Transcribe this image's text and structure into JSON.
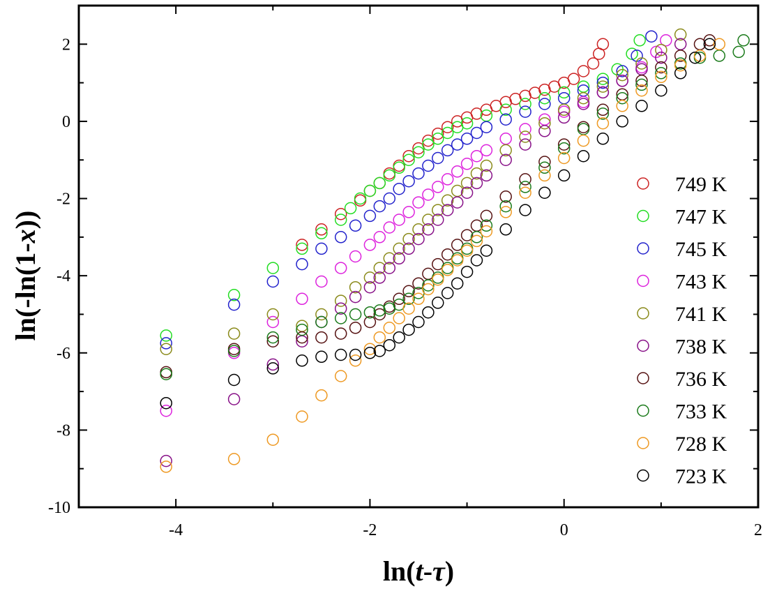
{
  "chart_data": {
    "type": "scatter",
    "xlabel": "ln(t-τ)",
    "ylabel": "ln(-ln(1-x))",
    "xlim": [
      -5,
      2
    ],
    "ylim": [
      -10,
      3
    ],
    "xticks": [
      -4,
      -2,
      0,
      2
    ],
    "yticks": [
      -10,
      -8,
      -6,
      -4,
      -2,
      0,
      2
    ],
    "grid": false,
    "legend_position": "right",
    "series": [
      {
        "name": "749 K",
        "color": "#cc2222",
        "points": [
          [
            -2.7,
            -3.2
          ],
          [
            -2.5,
            -2.8
          ],
          [
            -2.3,
            -2.4
          ],
          [
            -2.1,
            -2.05
          ],
          [
            -2.0,
            -1.8
          ],
          [
            -1.9,
            -1.6
          ],
          [
            -1.8,
            -1.35
          ],
          [
            -1.7,
            -1.15
          ],
          [
            -1.6,
            -0.9
          ],
          [
            -1.5,
            -0.7
          ],
          [
            -1.4,
            -0.5
          ],
          [
            -1.3,
            -0.32
          ],
          [
            -1.2,
            -0.15
          ],
          [
            -1.1,
            0.0
          ],
          [
            -1.0,
            0.1
          ],
          [
            -0.9,
            0.2
          ],
          [
            -0.8,
            0.3
          ],
          [
            -0.7,
            0.4
          ],
          [
            -0.6,
            0.5
          ],
          [
            -0.5,
            0.58
          ],
          [
            -0.4,
            0.66
          ],
          [
            -0.3,
            0.74
          ],
          [
            -0.2,
            0.82
          ],
          [
            -0.1,
            0.9
          ],
          [
            0.0,
            1.0
          ],
          [
            0.1,
            1.1
          ],
          [
            0.2,
            1.3
          ],
          [
            0.3,
            1.5
          ],
          [
            0.36,
            1.75
          ],
          [
            0.4,
            2.0
          ]
        ]
      },
      {
        "name": "747 K",
        "color": "#22dd22",
        "points": [
          [
            -4.1,
            -5.55
          ],
          [
            -3.4,
            -4.5
          ],
          [
            -3.0,
            -3.8
          ],
          [
            -2.7,
            -3.3
          ],
          [
            -2.5,
            -2.9
          ],
          [
            -2.3,
            -2.55
          ],
          [
            -2.2,
            -2.25
          ],
          [
            -2.1,
            -2.0
          ],
          [
            -2.0,
            -1.8
          ],
          [
            -1.9,
            -1.6
          ],
          [
            -1.8,
            -1.4
          ],
          [
            -1.7,
            -1.2
          ],
          [
            -1.6,
            -1.0
          ],
          [
            -1.5,
            -0.8
          ],
          [
            -1.4,
            -0.6
          ],
          [
            -1.3,
            -0.45
          ],
          [
            -1.2,
            -0.3
          ],
          [
            -1.1,
            -0.15
          ],
          [
            -1.0,
            -0.05
          ],
          [
            -0.8,
            0.15
          ],
          [
            -0.6,
            0.3
          ],
          [
            -0.4,
            0.45
          ],
          [
            -0.2,
            0.6
          ],
          [
            0.0,
            0.75
          ],
          [
            0.2,
            0.9
          ],
          [
            0.4,
            1.1
          ],
          [
            0.55,
            1.35
          ],
          [
            0.7,
            1.75
          ],
          [
            0.78,
            2.1
          ]
        ]
      },
      {
        "name": "745 K",
        "color": "#2222cc",
        "points": [
          [
            -4.1,
            -5.75
          ],
          [
            -3.4,
            -4.75
          ],
          [
            -3.0,
            -4.15
          ],
          [
            -2.7,
            -3.7
          ],
          [
            -2.5,
            -3.3
          ],
          [
            -2.3,
            -3.0
          ],
          [
            -2.15,
            -2.7
          ],
          [
            -2.0,
            -2.45
          ],
          [
            -1.9,
            -2.2
          ],
          [
            -1.8,
            -2.0
          ],
          [
            -1.7,
            -1.75
          ],
          [
            -1.6,
            -1.55
          ],
          [
            -1.5,
            -1.35
          ],
          [
            -1.4,
            -1.15
          ],
          [
            -1.3,
            -0.95
          ],
          [
            -1.2,
            -0.75
          ],
          [
            -1.1,
            -0.6
          ],
          [
            -1.0,
            -0.45
          ],
          [
            -0.9,
            -0.3
          ],
          [
            -0.8,
            -0.15
          ],
          [
            -0.6,
            0.05
          ],
          [
            -0.4,
            0.25
          ],
          [
            -0.2,
            0.45
          ],
          [
            0.0,
            0.6
          ],
          [
            0.2,
            0.8
          ],
          [
            0.4,
            1.0
          ],
          [
            0.6,
            1.3
          ],
          [
            0.75,
            1.7
          ],
          [
            0.9,
            2.2
          ]
        ]
      },
      {
        "name": "743 K",
        "color": "#dd22dd",
        "points": [
          [
            -4.1,
            -7.5
          ],
          [
            -3.4,
            -6.0
          ],
          [
            -3.0,
            -5.2
          ],
          [
            -2.7,
            -4.6
          ],
          [
            -2.5,
            -4.15
          ],
          [
            -2.3,
            -3.8
          ],
          [
            -2.15,
            -3.5
          ],
          [
            -2.0,
            -3.2
          ],
          [
            -1.9,
            -3.0
          ],
          [
            -1.8,
            -2.75
          ],
          [
            -1.7,
            -2.55
          ],
          [
            -1.6,
            -2.35
          ],
          [
            -1.5,
            -2.1
          ],
          [
            -1.4,
            -1.9
          ],
          [
            -1.3,
            -1.7
          ],
          [
            -1.2,
            -1.5
          ],
          [
            -1.1,
            -1.3
          ],
          [
            -1.0,
            -1.1
          ],
          [
            -0.9,
            -0.9
          ],
          [
            -0.8,
            -0.75
          ],
          [
            -0.6,
            -0.45
          ],
          [
            -0.4,
            -0.2
          ],
          [
            -0.2,
            0.05
          ],
          [
            0.0,
            0.25
          ],
          [
            0.2,
            0.5
          ],
          [
            0.4,
            0.75
          ],
          [
            0.6,
            1.05
          ],
          [
            0.8,
            1.4
          ],
          [
            0.95,
            1.8
          ],
          [
            1.05,
            2.1
          ]
        ]
      },
      {
        "name": "741 K",
        "color": "#8a8a1a",
        "points": [
          [
            -4.1,
            -5.9
          ],
          [
            -3.4,
            -5.5
          ],
          [
            -3.0,
            -5.0
          ],
          [
            -2.7,
            -5.3
          ],
          [
            -2.5,
            -5.0
          ],
          [
            -2.3,
            -4.65
          ],
          [
            -2.15,
            -4.3
          ],
          [
            -2.0,
            -4.05
          ],
          [
            -1.9,
            -3.8
          ],
          [
            -1.8,
            -3.55
          ],
          [
            -1.7,
            -3.3
          ],
          [
            -1.6,
            -3.05
          ],
          [
            -1.5,
            -2.8
          ],
          [
            -1.4,
            -2.55
          ],
          [
            -1.3,
            -2.3
          ],
          [
            -1.2,
            -2.05
          ],
          [
            -1.1,
            -1.8
          ],
          [
            -1.0,
            -1.6
          ],
          [
            -0.9,
            -1.35
          ],
          [
            -0.8,
            -1.15
          ],
          [
            -0.6,
            -0.75
          ],
          [
            -0.4,
            -0.4
          ],
          [
            -0.2,
            -0.05
          ],
          [
            0.0,
            0.3
          ],
          [
            0.2,
            0.6
          ],
          [
            0.4,
            0.9
          ],
          [
            0.6,
            1.2
          ],
          [
            0.8,
            1.5
          ],
          [
            1.0,
            1.85
          ],
          [
            1.2,
            2.25
          ]
        ]
      },
      {
        "name": "738 K",
        "color": "#881188",
        "points": [
          [
            -4.1,
            -8.8
          ],
          [
            -3.4,
            -7.2
          ],
          [
            -3.0,
            -6.3
          ],
          [
            -2.7,
            -5.7
          ],
          [
            -2.5,
            -5.2
          ],
          [
            -2.3,
            -4.85
          ],
          [
            -2.15,
            -4.55
          ],
          [
            -2.0,
            -4.3
          ],
          [
            -1.9,
            -4.05
          ],
          [
            -1.8,
            -3.8
          ],
          [
            -1.7,
            -3.55
          ],
          [
            -1.6,
            -3.3
          ],
          [
            -1.5,
            -3.05
          ],
          [
            -1.4,
            -2.8
          ],
          [
            -1.3,
            -2.55
          ],
          [
            -1.2,
            -2.3
          ],
          [
            -1.1,
            -2.1
          ],
          [
            -1.0,
            -1.85
          ],
          [
            -0.9,
            -1.6
          ],
          [
            -0.8,
            -1.4
          ],
          [
            -0.6,
            -1.0
          ],
          [
            -0.4,
            -0.6
          ],
          [
            -0.2,
            -0.25
          ],
          [
            0.0,
            0.1
          ],
          [
            0.2,
            0.45
          ],
          [
            0.4,
            0.75
          ],
          [
            0.6,
            1.05
          ],
          [
            0.8,
            1.35
          ],
          [
            1.0,
            1.65
          ],
          [
            1.2,
            2.0
          ]
        ]
      },
      {
        "name": "736 K",
        "color": "#551111",
        "points": [
          [
            -4.1,
            -6.5
          ],
          [
            -3.4,
            -5.9
          ],
          [
            -3.0,
            -5.7
          ],
          [
            -2.7,
            -5.6
          ],
          [
            -2.5,
            -5.6
          ],
          [
            -2.3,
            -5.5
          ],
          [
            -2.15,
            -5.35
          ],
          [
            -2.0,
            -5.2
          ],
          [
            -1.9,
            -5.0
          ],
          [
            -1.8,
            -4.8
          ],
          [
            -1.7,
            -4.6
          ],
          [
            -1.6,
            -4.4
          ],
          [
            -1.5,
            -4.2
          ],
          [
            -1.4,
            -3.95
          ],
          [
            -1.3,
            -3.7
          ],
          [
            -1.2,
            -3.45
          ],
          [
            -1.1,
            -3.2
          ],
          [
            -1.0,
            -2.95
          ],
          [
            -0.9,
            -2.7
          ],
          [
            -0.8,
            -2.45
          ],
          [
            -0.6,
            -1.95
          ],
          [
            -0.4,
            -1.5
          ],
          [
            -0.2,
            -1.05
          ],
          [
            0.0,
            -0.6
          ],
          [
            0.2,
            -0.15
          ],
          [
            0.4,
            0.3
          ],
          [
            0.6,
            0.7
          ],
          [
            0.8,
            1.05
          ],
          [
            1.0,
            1.4
          ],
          [
            1.2,
            1.7
          ],
          [
            1.4,
            2.0
          ],
          [
            1.5,
            2.1
          ]
        ]
      },
      {
        "name": "733 K",
        "color": "#1a7a1a",
        "points": [
          [
            -4.1,
            -6.55
          ],
          [
            -3.4,
            -5.95
          ],
          [
            -3.0,
            -5.6
          ],
          [
            -2.7,
            -5.4
          ],
          [
            -2.5,
            -5.2
          ],
          [
            -2.3,
            -5.1
          ],
          [
            -2.15,
            -5.0
          ],
          [
            -2.0,
            -4.95
          ],
          [
            -1.9,
            -4.9
          ],
          [
            -1.8,
            -4.85
          ],
          [
            -1.7,
            -4.75
          ],
          [
            -1.6,
            -4.6
          ],
          [
            -1.5,
            -4.45
          ],
          [
            -1.4,
            -4.25
          ],
          [
            -1.3,
            -4.05
          ],
          [
            -1.2,
            -3.8
          ],
          [
            -1.1,
            -3.55
          ],
          [
            -1.0,
            -3.3
          ],
          [
            -0.9,
            -3.0
          ],
          [
            -0.8,
            -2.7
          ],
          [
            -0.6,
            -2.2
          ],
          [
            -0.4,
            -1.7
          ],
          [
            -0.2,
            -1.2
          ],
          [
            0.0,
            -0.7
          ],
          [
            0.2,
            -0.2
          ],
          [
            0.4,
            0.2
          ],
          [
            0.6,
            0.6
          ],
          [
            0.8,
            0.95
          ],
          [
            1.0,
            1.25
          ],
          [
            1.2,
            1.5
          ],
          [
            1.4,
            1.65
          ],
          [
            1.6,
            1.7
          ],
          [
            1.8,
            1.8
          ],
          [
            1.85,
            2.1
          ]
        ]
      },
      {
        "name": "728 K",
        "color": "#ee9922",
        "points": [
          [
            -4.1,
            -8.95
          ],
          [
            -3.4,
            -8.75
          ],
          [
            -3.0,
            -8.25
          ],
          [
            -2.7,
            -7.65
          ],
          [
            -2.5,
            -7.1
          ],
          [
            -2.3,
            -6.6
          ],
          [
            -2.15,
            -6.2
          ],
          [
            -2.0,
            -5.9
          ],
          [
            -1.9,
            -5.6
          ],
          [
            -1.8,
            -5.35
          ],
          [
            -1.7,
            -5.1
          ],
          [
            -1.6,
            -4.85
          ],
          [
            -1.5,
            -4.6
          ],
          [
            -1.4,
            -4.35
          ],
          [
            -1.3,
            -4.1
          ],
          [
            -1.2,
            -3.85
          ],
          [
            -1.1,
            -3.6
          ],
          [
            -1.0,
            -3.35
          ],
          [
            -0.9,
            -3.1
          ],
          [
            -0.8,
            -2.85
          ],
          [
            -0.6,
            -2.35
          ],
          [
            -0.4,
            -1.85
          ],
          [
            -0.2,
            -1.4
          ],
          [
            0.0,
            -0.95
          ],
          [
            0.2,
            -0.5
          ],
          [
            0.4,
            -0.05
          ],
          [
            0.6,
            0.4
          ],
          [
            0.8,
            0.8
          ],
          [
            1.0,
            1.15
          ],
          [
            1.2,
            1.45
          ],
          [
            1.4,
            1.7
          ],
          [
            1.6,
            2.0
          ]
        ]
      },
      {
        "name": "723 K",
        "color": "#000000",
        "points": [
          [
            -4.1,
            -7.3
          ],
          [
            -3.4,
            -6.7
          ],
          [
            -3.0,
            -6.4
          ],
          [
            -2.7,
            -6.2
          ],
          [
            -2.5,
            -6.1
          ],
          [
            -2.3,
            -6.05
          ],
          [
            -2.15,
            -6.05
          ],
          [
            -2.0,
            -6.0
          ],
          [
            -1.9,
            -5.95
          ],
          [
            -1.8,
            -5.8
          ],
          [
            -1.7,
            -5.6
          ],
          [
            -1.6,
            -5.4
          ],
          [
            -1.5,
            -5.2
          ],
          [
            -1.4,
            -4.95
          ],
          [
            -1.3,
            -4.7
          ],
          [
            -1.2,
            -4.45
          ],
          [
            -1.1,
            -4.2
          ],
          [
            -1.0,
            -3.9
          ],
          [
            -0.9,
            -3.6
          ],
          [
            -0.8,
            -3.35
          ],
          [
            -0.6,
            -2.8
          ],
          [
            -0.4,
            -2.3
          ],
          [
            -0.2,
            -1.85
          ],
          [
            0.0,
            -1.4
          ],
          [
            0.2,
            -0.9
          ],
          [
            0.4,
            -0.45
          ],
          [
            0.6,
            0.0
          ],
          [
            0.8,
            0.4
          ],
          [
            1.0,
            0.8
          ],
          [
            1.2,
            1.25
          ],
          [
            1.35,
            1.65
          ],
          [
            1.5,
            2.0
          ]
        ]
      }
    ]
  }
}
